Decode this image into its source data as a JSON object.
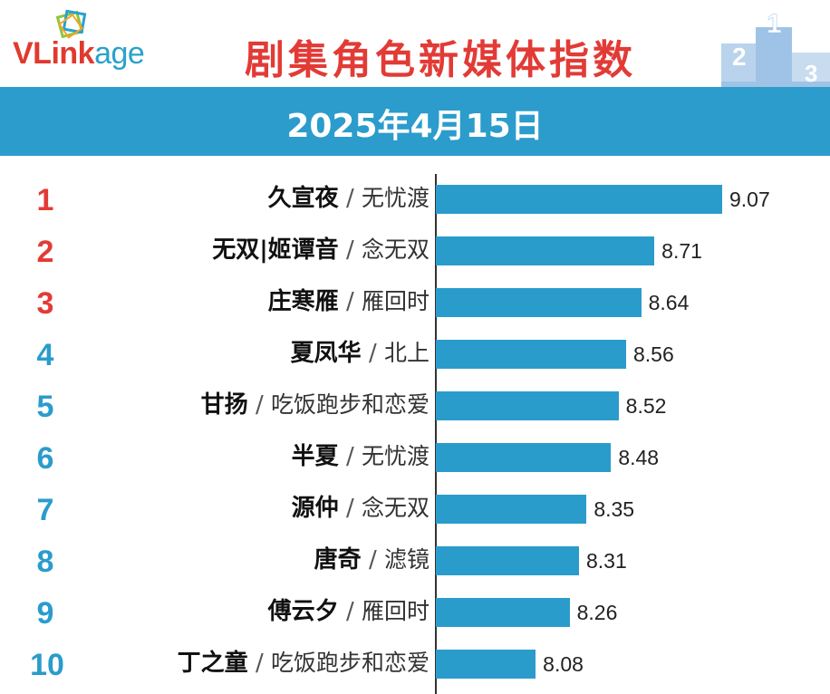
{
  "header": {
    "logo_main": "VLink",
    "logo_suffix": "age",
    "title": "剧集角色新媒体指数",
    "podium_digits": [
      "2",
      "1",
      "3"
    ]
  },
  "date": "2025年4月15日",
  "colors": {
    "red": "#e23b36",
    "blue": "#2a9ccc",
    "brand_band": "#2b9ccc"
  },
  "chart_data": {
    "type": "bar",
    "orientation": "horizontal",
    "categories": [
      "久宣夜 / 无忧渡",
      "无双|姬谭音 / 念无双",
      "庄寒雁 / 雁回时",
      "夏凤华 / 北上",
      "甘扬 / 吃饭跑步和恋爱",
      "半夏 / 无忧渡",
      "源仲 / 念无双",
      "唐奇 / 滤镜",
      "傅云夕 / 雁回时",
      "丁之童 / 吃饭跑步和恋爱"
    ],
    "items": [
      {
        "rank": "1",
        "name": "久宣夜",
        "drama": "无忧渡",
        "value": 9.07
      },
      {
        "rank": "2",
        "name": "无双|姬谭音",
        "drama": "念无双",
        "value": 8.71
      },
      {
        "rank": "3",
        "name": "庄寒雁",
        "drama": "雁回时",
        "value": 8.64
      },
      {
        "rank": "4",
        "name": "夏凤华",
        "drama": "北上",
        "value": 8.56
      },
      {
        "rank": "5",
        "name": "甘扬",
        "drama": "吃饭跑步和恋爱",
        "value": 8.52
      },
      {
        "rank": "6",
        "name": "半夏",
        "drama": "无忧渡",
        "value": 8.48
      },
      {
        "rank": "7",
        "name": "源仲",
        "drama": "念无双",
        "value": 8.35
      },
      {
        "rank": "8",
        "name": "唐奇",
        "drama": "滤镜",
        "value": 8.31
      },
      {
        "rank": "9",
        "name": "傅云夕",
        "drama": "雁回时",
        "value": 8.26
      },
      {
        "rank": "10",
        "name": "丁之童",
        "drama": "吃饭跑步和恋爱",
        "value": 8.08
      }
    ],
    "values": [
      9.07,
      8.71,
      8.64,
      8.56,
      8.52,
      8.48,
      8.35,
      8.31,
      8.26,
      8.08
    ],
    "title": "剧集角色新媒体指数",
    "subtitle": "2025年4月15日",
    "xlabel": "",
    "ylabel": "",
    "grid": false,
    "legend": "none"
  }
}
